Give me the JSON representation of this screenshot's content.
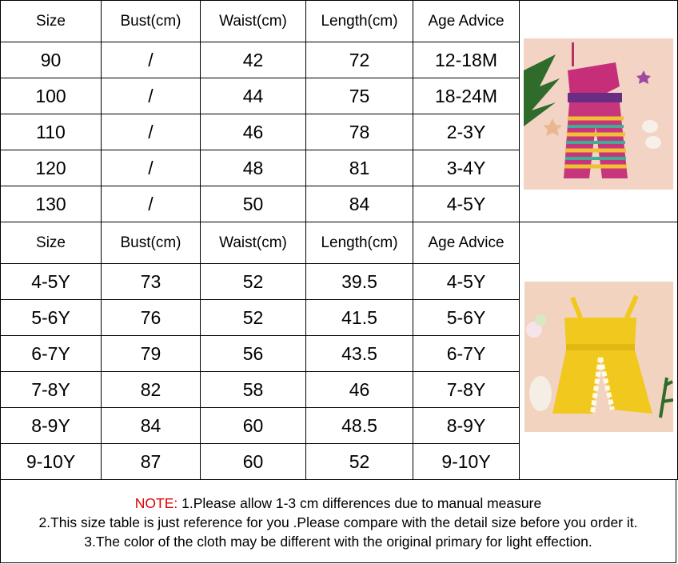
{
  "table1": {
    "headers": [
      "Size",
      "Bust(cm)",
      "Waist(cm)",
      "Length(cm)",
      "Age Advice"
    ],
    "rows": [
      [
        "90",
        "/",
        "42",
        "72",
        "12-18M"
      ],
      [
        "100",
        "/",
        "44",
        "75",
        "18-24M"
      ],
      [
        "110",
        "/",
        "46",
        "78",
        "2-3Y"
      ],
      [
        "120",
        "/",
        "48",
        "81",
        "3-4Y"
      ],
      [
        "130",
        "/",
        "50",
        "84",
        "4-5Y"
      ]
    ]
  },
  "table2": {
    "headers": [
      "Size",
      "Bust(cm)",
      "Waist(cm)",
      "Length(cm)",
      "Age Advice"
    ],
    "rows": [
      [
        "4-5Y",
        "73",
        "52",
        "39.5",
        "4-5Y"
      ],
      [
        "5-6Y",
        "76",
        "52",
        "41.5",
        "5-6Y"
      ],
      [
        "6-7Y",
        "79",
        "56",
        "43.5",
        "6-7Y"
      ],
      [
        "7-8Y",
        "82",
        "58",
        "46",
        "7-8Y"
      ],
      [
        "8-9Y",
        "84",
        "60",
        "48.5",
        "8-9Y"
      ],
      [
        "9-10Y",
        "87",
        "60",
        "52",
        "9-10Y"
      ]
    ]
  },
  "note": {
    "label": "NOTE:",
    "line1": " 1.Please allow 1-3 cm differences due to manual measure",
    "line2": "2.This size table is just reference for you .Please compare with the detail size before you order  it.",
    "line3": "3.The color of the cloth may be different with the original primary for light effection."
  },
  "colors": {
    "note_label": "#e00000",
    "photo1_bg": "#f3d3c4",
    "photo2_bg": "#f2d3c0",
    "romper_yellow": "#f0c81e"
  }
}
